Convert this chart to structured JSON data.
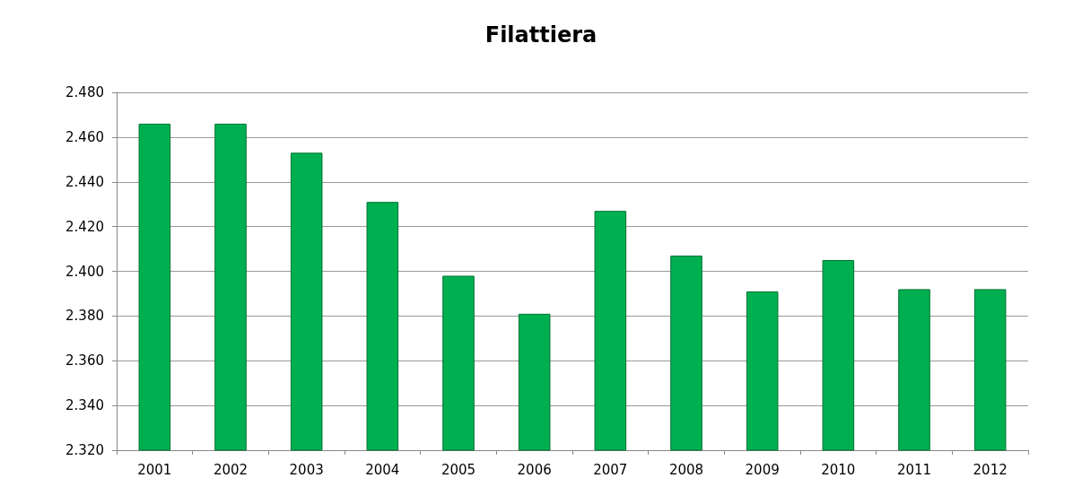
{
  "chart_data": {
    "type": "bar",
    "title": "Filattiera",
    "categories": [
      "2001",
      "2002",
      "2003",
      "2004",
      "2005",
      "2006",
      "2007",
      "2008",
      "2009",
      "2010",
      "2011",
      "2012"
    ],
    "values": [
      2466,
      2466,
      2453,
      2431,
      2398,
      2381,
      2427,
      2407,
      2391,
      2405,
      2392,
      2392
    ],
    "color": "#00b050",
    "ylim": [
      2320,
      2480
    ],
    "yticks": [
      {
        "value": 2320,
        "label": "2.320"
      },
      {
        "value": 2340,
        "label": "2.340"
      },
      {
        "value": 2360,
        "label": "2.360"
      },
      {
        "value": 2380,
        "label": "2.380"
      },
      {
        "value": 2400,
        "label": "2.400"
      },
      {
        "value": 2420,
        "label": "2.420"
      },
      {
        "value": 2440,
        "label": "2.440"
      },
      {
        "value": 2460,
        "label": "2.460"
      },
      {
        "value": 2480,
        "label": "2.480"
      }
    ],
    "grid": true
  }
}
